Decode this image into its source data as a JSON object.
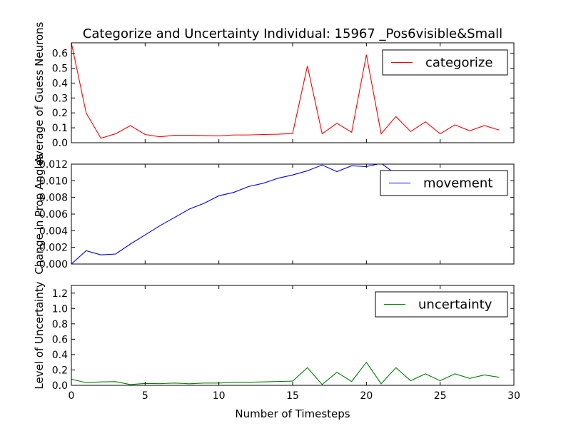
{
  "chart_data": {
    "type": "line",
    "title": "Categorize and Uncertainty Individual: 15967 _Pos6visible&Small",
    "xlabel": "Number of Timesteps",
    "xlim": [
      0,
      30
    ],
    "xticks": [
      0,
      5,
      10,
      15,
      20,
      25,
      30
    ],
    "panels": [
      {
        "ylabel": "Average of Guess Neurons",
        "ylim": [
          0,
          0.67
        ],
        "yticks": [
          "0.0",
          "0.1",
          "0.2",
          "0.3",
          "0.4",
          "0.5",
          "0.6"
        ],
        "legend": "top-right",
        "grid": false,
        "series": [
          {
            "name": "categorize",
            "color": "#ff0000",
            "x": [
              0,
              1,
              2,
              3,
              4,
              5,
              6,
              7,
              8,
              9,
              10,
              11,
              12,
              13,
              14,
              15,
              16,
              17,
              18,
              19,
              20,
              21,
              22,
              23,
              24,
              25,
              26,
              27,
              28,
              29
            ],
            "y": [
              0.67,
              0.2,
              0.03,
              0.06,
              0.115,
              0.055,
              0.04,
              0.05,
              0.05,
              0.048,
              0.046,
              0.052,
              0.052,
              0.055,
              0.057,
              0.062,
              0.515,
              0.06,
              0.13,
              0.07,
              0.59,
              0.06,
              0.175,
              0.075,
              0.14,
              0.06,
              0.12,
              0.08,
              0.115,
              0.085
            ]
          }
        ]
      },
      {
        "ylabel": "Change in Prop Angles",
        "ylim": [
          0,
          0.012
        ],
        "yticks": [
          "0.000",
          "0.002",
          "0.004",
          "0.006",
          "0.008",
          "0.010",
          "0.012"
        ],
        "legend": "top-right",
        "grid": false,
        "series": [
          {
            "name": "movement",
            "color": "#0000ff",
            "x": [
              0,
              1,
              2,
              3,
              4,
              5,
              6,
              7,
              8,
              9,
              10,
              11,
              12,
              13,
              14,
              15,
              16,
              17,
              18,
              19,
              20,
              21,
              22,
              23,
              24,
              25,
              26,
              27,
              28,
              29
            ],
            "y": [
              0.0,
              0.0016,
              0.0011,
              0.0012,
              0.0024,
              0.0035,
              0.0046,
              0.0056,
              0.0066,
              0.0073,
              0.0082,
              0.0086,
              0.0093,
              0.0097,
              0.0103,
              0.0107,
              0.0112,
              0.0119,
              0.0111,
              0.0118,
              0.0117,
              0.0121,
              0.0108,
              0.0099,
              0.0094,
              0.0091,
              0.0089,
              0.0088,
              0.0088,
              0.0088
            ]
          }
        ]
      },
      {
        "ylabel": "Level of Uncertainty",
        "ylim": [
          0,
          1.3
        ],
        "yticks": [
          "0.0",
          "0.2",
          "0.4",
          "0.6",
          "0.8",
          "1.0",
          "1.2"
        ],
        "legend": "top-right",
        "grid": false,
        "series": [
          {
            "name": "uncertainty",
            "color": "#008000",
            "x": [
              0,
              1,
              2,
              3,
              4,
              5,
              6,
              7,
              8,
              9,
              10,
              11,
              12,
              13,
              14,
              15,
              16,
              17,
              18,
              19,
              20,
              21,
              22,
              23,
              24,
              25,
              26,
              27,
              28,
              29
            ],
            "y": [
              0.08,
              0.035,
              0.045,
              0.048,
              0.01,
              0.025,
              0.022,
              0.03,
              0.02,
              0.03,
              0.03,
              0.04,
              0.04,
              0.045,
              0.05,
              0.055,
              0.23,
              0.01,
              0.17,
              0.05,
              0.3,
              0.02,
              0.23,
              0.06,
              0.15,
              0.06,
              0.15,
              0.09,
              0.135,
              0.105
            ]
          }
        ]
      }
    ]
  }
}
